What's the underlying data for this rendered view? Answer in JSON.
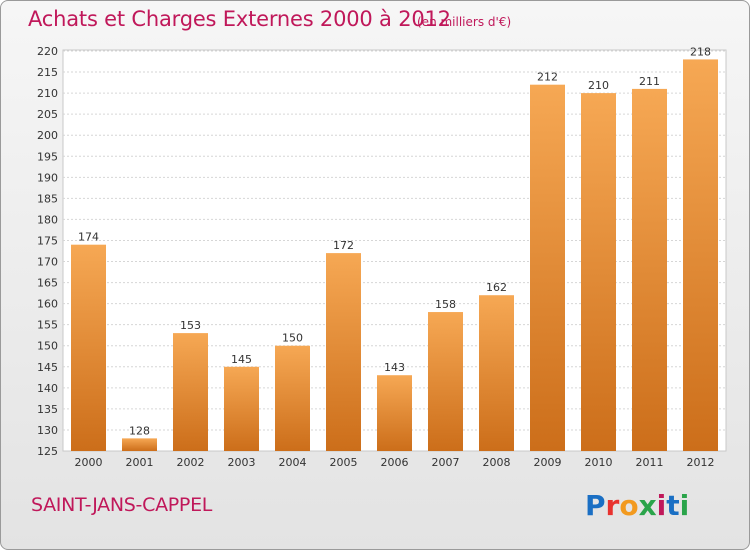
{
  "title": "Achats et Charges Externes 2000 à 2012",
  "subtitle": "(en milliers d'€)",
  "commune": "SAINT-JANS-CAPPEL",
  "logo": {
    "text": "Proxiti",
    "colors": [
      "#1a6fc4",
      "#e8322f",
      "#f29a1f",
      "#2aa44a",
      "#c0185a",
      "#1a6fc4",
      "#2aa44a"
    ]
  },
  "colors": {
    "accent": "#c0185a",
    "bar_top": "#f6a854",
    "bar_bottom": "#cc6e1a"
  },
  "chart_data": {
    "type": "bar",
    "title": "Achats et Charges Externes 2000 à 2012",
    "subtitle": "(en milliers d'€)",
    "xlabel": "",
    "ylabel": "",
    "categories": [
      "2000",
      "2001",
      "2002",
      "2003",
      "2004",
      "2005",
      "2006",
      "2007",
      "2008",
      "2009",
      "2010",
      "2011",
      "2012"
    ],
    "values": [
      174,
      128,
      153,
      145,
      150,
      172,
      143,
      158,
      162,
      212,
      210,
      211,
      218
    ],
    "ylim": [
      125,
      220
    ],
    "yticks": [
      125,
      130,
      135,
      140,
      145,
      150,
      155,
      160,
      165,
      170,
      175,
      180,
      185,
      190,
      195,
      200,
      205,
      210,
      215,
      220
    ],
    "grid": true,
    "legend": "none"
  }
}
